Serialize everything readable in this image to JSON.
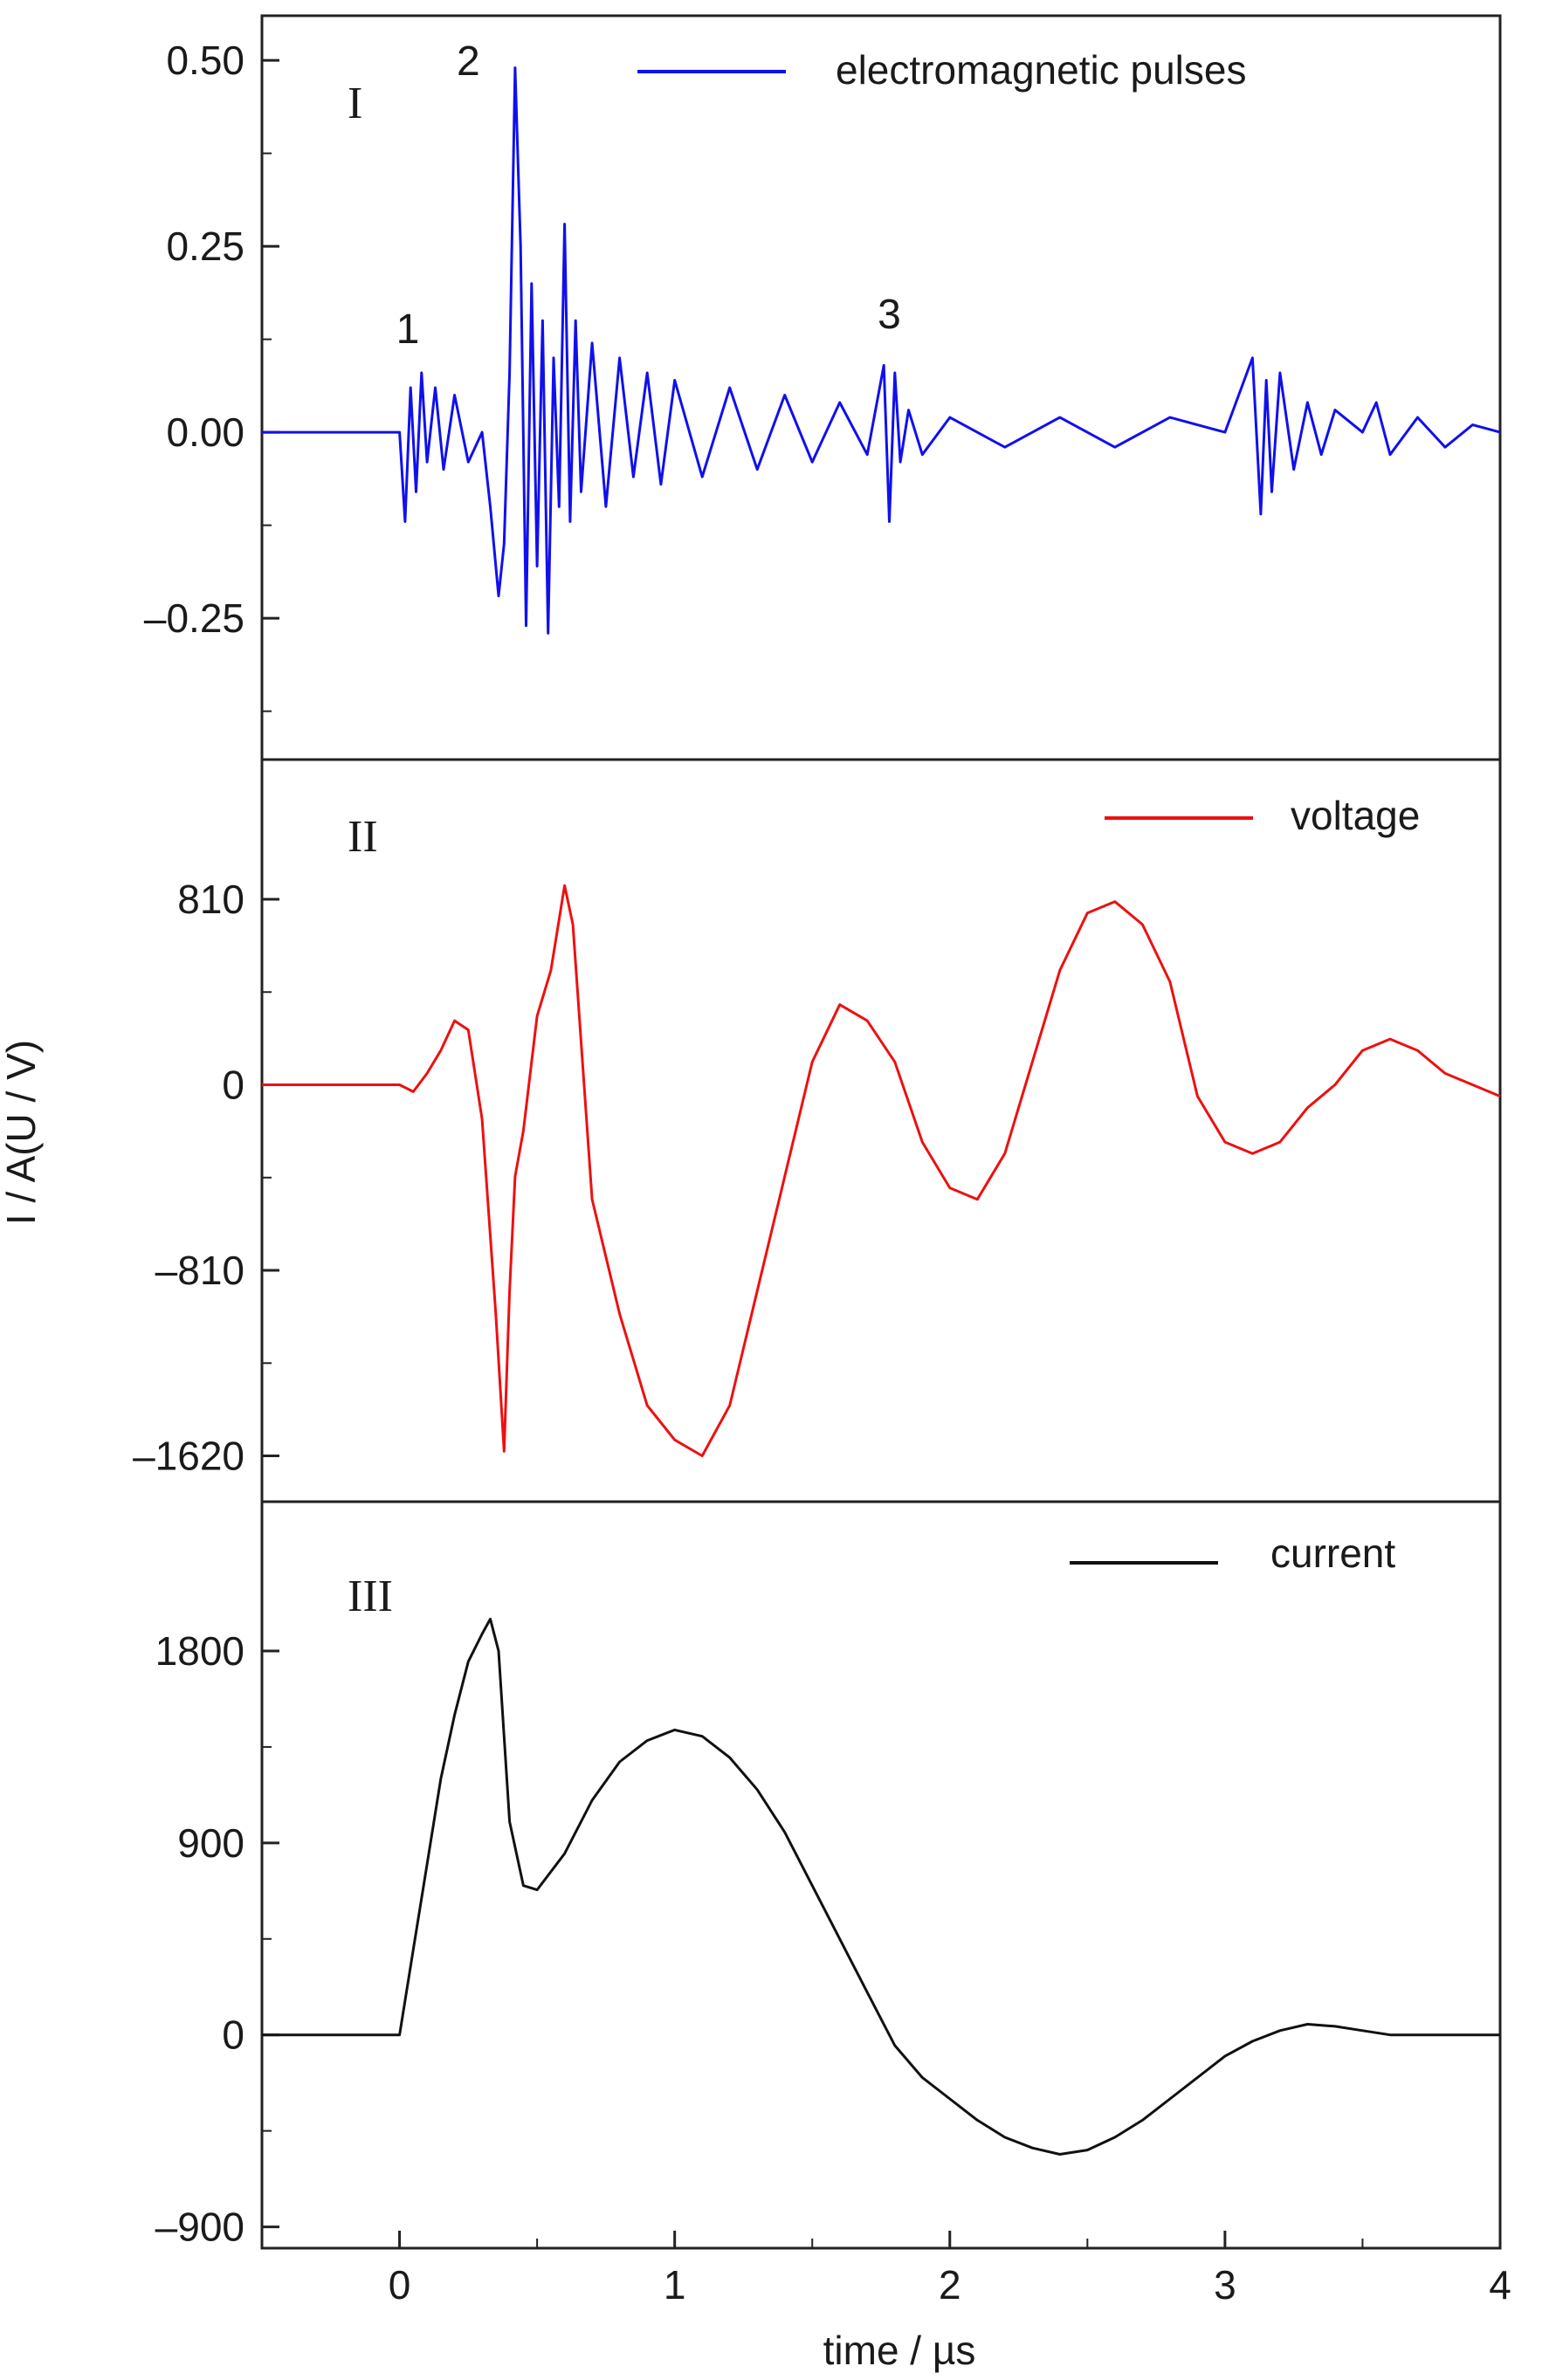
{
  "figure": {
    "ylabel": "I / A(U / V)",
    "xlabel": "time / µs",
    "x_ticks": [
      0,
      1,
      2,
      3,
      4
    ],
    "xlim": [
      -0.5,
      4
    ]
  },
  "chart_data": [
    {
      "type": "line",
      "panel_label": "I",
      "legend": "electromagnetic pulses",
      "legend_placement": "top-right",
      "color": "#1010ee",
      "ylim": [
        -0.44,
        0.56
      ],
      "y_ticks": [
        0.5,
        0.25,
        0.0,
        -0.25
      ],
      "y_tick_labels": [
        "0.50",
        "0.25",
        "0.00",
        "–0.25"
      ],
      "annotations": [
        {
          "text": "1",
          "x": 0.03,
          "y": 0.12
        },
        {
          "text": "2",
          "x": 0.25,
          "y": 0.48
        },
        {
          "text": "3",
          "x": 1.78,
          "y": 0.14
        }
      ],
      "series": [
        {
          "x": [
            -0.5,
            -0.3,
            -0.1,
            0.0,
            0.02,
            0.04,
            0.06,
            0.08,
            0.1,
            0.13,
            0.16,
            0.2,
            0.25,
            0.3,
            0.33,
            0.36,
            0.38,
            0.4,
            0.42,
            0.44,
            0.46,
            0.48,
            0.5,
            0.52,
            0.54,
            0.56,
            0.58,
            0.6,
            0.62,
            0.64,
            0.66,
            0.7,
            0.75,
            0.8,
            0.85,
            0.9,
            0.95,
            1.0,
            1.1,
            1.2,
            1.3,
            1.4,
            1.5,
            1.6,
            1.7,
            1.76,
            1.78,
            1.8,
            1.82,
            1.85,
            1.9,
            2.0,
            2.2,
            2.4,
            2.6,
            2.8,
            3.0,
            3.1,
            3.13,
            3.15,
            3.17,
            3.2,
            3.25,
            3.3,
            3.35,
            3.4,
            3.5,
            3.55,
            3.6,
            3.7,
            3.8,
            3.9,
            4.0
          ],
          "y": [
            0.0,
            0.0,
            0.0,
            0.0,
            -0.12,
            0.06,
            -0.08,
            0.08,
            -0.04,
            0.06,
            -0.05,
            0.05,
            -0.04,
            0.0,
            -0.1,
            -0.22,
            -0.15,
            0.08,
            0.49,
            0.25,
            -0.26,
            0.2,
            -0.18,
            0.15,
            -0.27,
            0.1,
            -0.1,
            0.28,
            -0.12,
            0.15,
            -0.08,
            0.12,
            -0.1,
            0.1,
            -0.06,
            0.08,
            -0.07,
            0.07,
            -0.06,
            0.06,
            -0.05,
            0.05,
            -0.04,
            0.04,
            -0.03,
            0.09,
            -0.12,
            0.08,
            -0.04,
            0.03,
            -0.03,
            0.02,
            -0.02,
            0.02,
            -0.02,
            0.02,
            0.0,
            0.1,
            -0.11,
            0.07,
            -0.08,
            0.08,
            -0.05,
            0.04,
            -0.03,
            0.03,
            0.0,
            0.04,
            -0.03,
            0.02,
            -0.02,
            0.01,
            0.0
          ]
        }
      ]
    },
    {
      "type": "line",
      "panel_label": "II",
      "legend": "voltage",
      "legend_placement": "top-right",
      "color": "#ee1010",
      "ylim": [
        -1820,
        1420
      ],
      "y_ticks": [
        810,
        0,
        -810,
        -1620
      ],
      "y_tick_labels": [
        "810",
        "0",
        "–810",
        "–1620"
      ],
      "series": [
        {
          "x": [
            -0.5,
            -0.3,
            -0.1,
            0.0,
            0.05,
            0.1,
            0.15,
            0.2,
            0.25,
            0.3,
            0.35,
            0.38,
            0.4,
            0.42,
            0.45,
            0.5,
            0.55,
            0.6,
            0.63,
            0.7,
            0.8,
            0.9,
            1.0,
            1.1,
            1.2,
            1.3,
            1.4,
            1.5,
            1.6,
            1.7,
            1.8,
            1.9,
            2.0,
            2.1,
            2.2,
            2.3,
            2.4,
            2.5,
            2.6,
            2.7,
            2.8,
            2.9,
            3.0,
            3.1,
            3.2,
            3.3,
            3.4,
            3.5,
            3.6,
            3.7,
            3.8,
            3.9,
            4.0
          ],
          "y": [
            0,
            0,
            0,
            0,
            -30,
            50,
            150,
            280,
            240,
            -150,
            -1000,
            -1600,
            -900,
            -400,
            -200,
            300,
            500,
            870,
            700,
            -500,
            -1000,
            -1400,
            -1550,
            -1620,
            -1400,
            -900,
            -400,
            100,
            350,
            280,
            100,
            -250,
            -450,
            -500,
            -300,
            100,
            500,
            750,
            800,
            700,
            450,
            -50,
            -250,
            -300,
            -250,
            -100,
            0,
            150,
            200,
            150,
            50,
            0,
            -50
          ]
        }
      ]
    },
    {
      "type": "line",
      "panel_label": "III",
      "legend": "current",
      "legend_placement": "top-right",
      "color": "#111111",
      "ylim": [
        -1000,
        2500
      ],
      "y_ticks": [
        1800,
        900,
        0,
        -900
      ],
      "y_tick_labels": [
        "1800",
        "900",
        "0",
        "–900"
      ],
      "series": [
        {
          "x": [
            -0.5,
            -0.2,
            0.0,
            0.05,
            0.1,
            0.15,
            0.2,
            0.25,
            0.3,
            0.33,
            0.36,
            0.4,
            0.45,
            0.5,
            0.6,
            0.7,
            0.8,
            0.9,
            1.0,
            1.1,
            1.2,
            1.3,
            1.4,
            1.5,
            1.6,
            1.7,
            1.8,
            1.9,
            2.0,
            2.1,
            2.2,
            2.3,
            2.4,
            2.5,
            2.6,
            2.7,
            2.8,
            2.9,
            3.0,
            3.1,
            3.2,
            3.3,
            3.4,
            3.5,
            3.6,
            3.8,
            4.0
          ],
          "y": [
            0,
            0,
            0,
            400,
            800,
            1200,
            1500,
            1750,
            1880,
            1950,
            1800,
            1000,
            700,
            680,
            850,
            1100,
            1280,
            1380,
            1430,
            1400,
            1300,
            1150,
            950,
            700,
            450,
            200,
            -50,
            -200,
            -300,
            -400,
            -480,
            -530,
            -560,
            -540,
            -480,
            -400,
            -300,
            -200,
            -100,
            -30,
            20,
            50,
            40,
            20,
            0,
            0,
            0
          ]
        }
      ]
    }
  ]
}
